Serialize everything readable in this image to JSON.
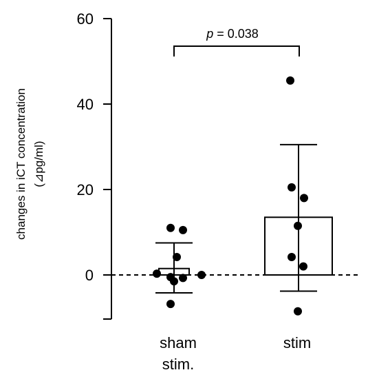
{
  "chart_data": {
    "type": "bar",
    "categories": [
      {
        "line1": "sham",
        "line2": "stim."
      },
      {
        "line1": "stim",
        "line2": ""
      }
    ],
    "series": [
      {
        "mean": 1.5,
        "error_upper": 7.5,
        "error_lower": -4.2,
        "points": [
          11,
          10.5,
          4.2,
          0.3,
          -0.5,
          -0.7,
          -1.5,
          0,
          -6.8
        ]
      },
      {
        "mean": 13.5,
        "error_upper": 30.5,
        "error_lower": -3.8,
        "points": [
          45.5,
          20.5,
          18,
          11.5,
          4.2,
          2,
          -8.5
        ]
      }
    ],
    "ylabel": {
      "line1": "changes in iCT concentration",
      "line2": "(⊿pg/ml)"
    },
    "yticks": [
      "0",
      "20",
      "40",
      "60"
    ],
    "ylim": [
      -10,
      60
    ],
    "reference_line": 0,
    "annotation": {
      "p_symbol": "p",
      "p_rest": " = 0.038"
    },
    "grid": false
  }
}
